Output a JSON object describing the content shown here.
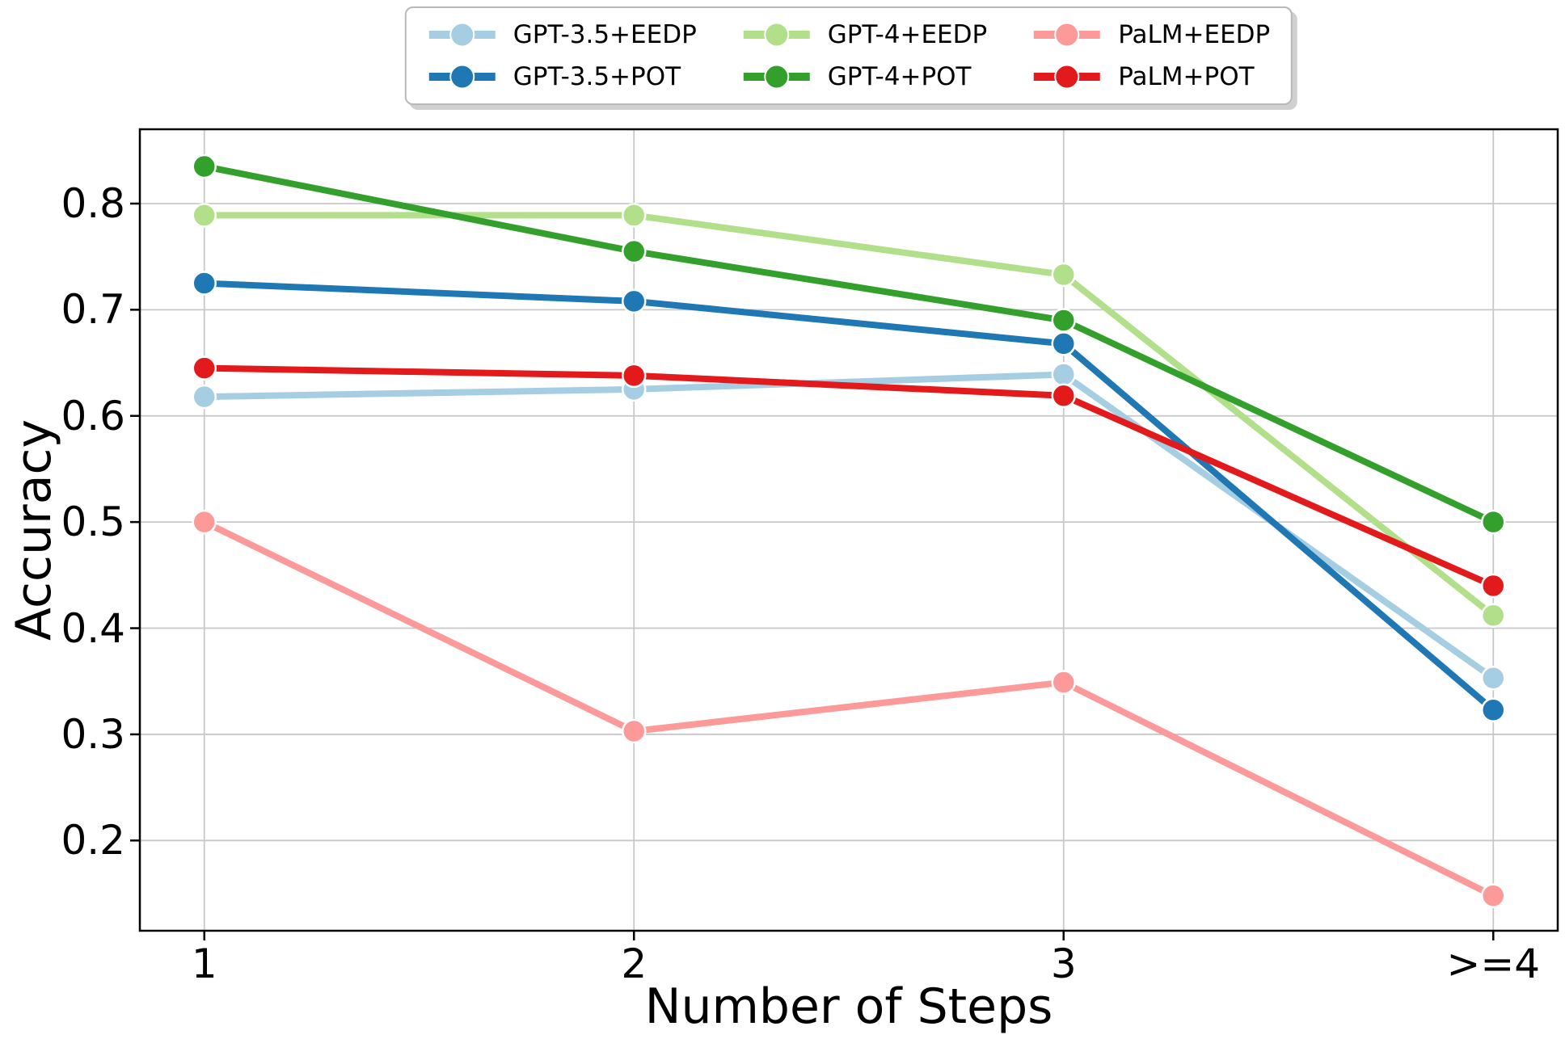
{
  "chart_data": {
    "type": "line",
    "title": "",
    "xlabel": "Number of Steps",
    "ylabel": "Accuracy",
    "categories": [
      "1",
      "2",
      "3",
      ">=4"
    ],
    "y_ticks": [
      "0.2",
      "0.3",
      "0.4",
      "0.5",
      "0.6",
      "0.7",
      "0.8"
    ],
    "y_tick_values": [
      0.2,
      0.3,
      0.4,
      0.5,
      0.6,
      0.7,
      0.8
    ],
    "xlim": [
      0.85,
      4.15
    ],
    "ylim": [
      0.115,
      0.87
    ],
    "grid": true,
    "legend_position": "top-center",
    "legend_columns": 3,
    "series": [
      {
        "name": "GPT-3.5+EEDP",
        "color": "#a6cee3",
        "values": [
          0.618,
          0.625,
          0.639,
          0.353
        ]
      },
      {
        "name": "GPT-3.5+POT",
        "color": "#1f78b4",
        "values": [
          0.725,
          0.708,
          0.668,
          0.323
        ]
      },
      {
        "name": "GPT-4+EEDP",
        "color": "#b2df8a",
        "values": [
          0.789,
          0.789,
          0.733,
          0.412
        ]
      },
      {
        "name": "GPT-4+POT",
        "color": "#33a02c",
        "values": [
          0.835,
          0.755,
          0.69,
          0.5
        ]
      },
      {
        "name": "PaLM+EEDP",
        "color": "#fb9a99",
        "values": [
          0.5,
          0.303,
          0.349,
          0.148
        ]
      },
      {
        "name": "PaLM+POT",
        "color": "#e31a1c",
        "values": [
          0.645,
          0.638,
          0.619,
          0.44
        ]
      }
    ],
    "style": {
      "grid_color": "#c8c8c8",
      "spine_color": "#000000",
      "marker_edge_color": "#ffffff",
      "background": "#ffffff"
    }
  }
}
